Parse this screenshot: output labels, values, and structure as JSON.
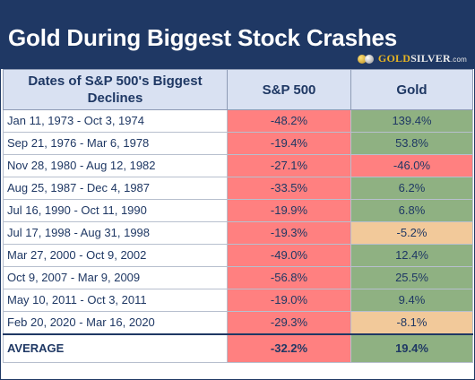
{
  "title": "Gold During Biggest Stock Crashes",
  "logo": {
    "gold": "GOLD",
    "silver": "SILVER",
    "suffix": ".com",
    "icon": "coins-icon"
  },
  "colors": {
    "header_bg": "#1f3864",
    "column_header_bg": "#d9e1f2",
    "negative_sp500": "#ff8080",
    "gold_positive": "#8fb182",
    "gold_negative_large": "#ff8080",
    "gold_negative_small": "#f2c99a"
  },
  "chart_data": {
    "type": "table",
    "columns": [
      "Dates of S&P 500's Biggest Declines",
      "S&P 500",
      "Gold"
    ],
    "rows": [
      {
        "period": "Jan 11, 1973 - Oct 3, 1974",
        "sp500": "-48.2%",
        "gold": "139.4%",
        "gold_color": "green"
      },
      {
        "period": "Sep 21, 1976 - Mar 6, 1978",
        "sp500": "-19.4%",
        "gold": "53.8%",
        "gold_color": "green"
      },
      {
        "period": "Nov 28, 1980 - Aug 12, 1982",
        "sp500": "-27.1%",
        "gold": "-46.0%",
        "gold_color": "red"
      },
      {
        "period": "Aug 25, 1987 - Dec 4, 1987",
        "sp500": "-33.5%",
        "gold": "6.2%",
        "gold_color": "green"
      },
      {
        "period": "Jul 16, 1990 - Oct 11, 1990",
        "sp500": "-19.9%",
        "gold": "6.8%",
        "gold_color": "green"
      },
      {
        "period": "Jul 17, 1998 - Aug 31, 1998",
        "sp500": "-19.3%",
        "gold": "-5.2%",
        "gold_color": "tan"
      },
      {
        "period": "Mar 27, 2000 - Oct 9, 2002",
        "sp500": "-49.0%",
        "gold": "12.4%",
        "gold_color": "green"
      },
      {
        "period": "Oct 9, 2007 - Mar 9, 2009",
        "sp500": "-56.8%",
        "gold": "25.5%",
        "gold_color": "green"
      },
      {
        "period": "May 10, 2011 - Oct 3, 2011",
        "sp500": "-19.0%",
        "gold": "9.4%",
        "gold_color": "green"
      },
      {
        "period": "Feb 20, 2020 - Mar 16, 2020",
        "sp500": "-29.3%",
        "gold": "-8.1%",
        "gold_color": "tan"
      }
    ],
    "average": {
      "label": "AVERAGE",
      "sp500": "-32.2%",
      "gold": "19.4%",
      "gold_color": "green"
    }
  }
}
